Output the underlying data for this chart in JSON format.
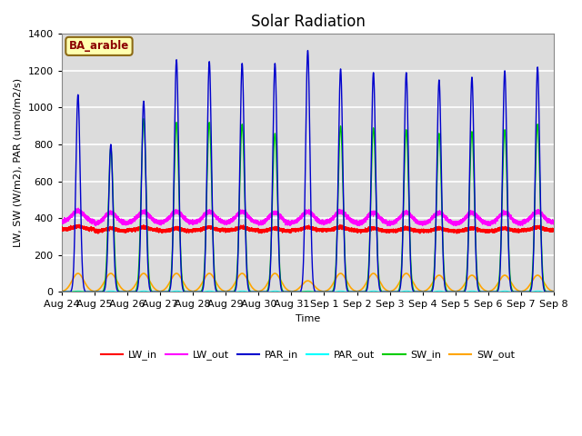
{
  "title": "Solar Radiation",
  "ylabel": "LW, SW (W/m2), PAR (umol/m2/s)",
  "xlabel": "Time",
  "annotation": "BA_arable",
  "ylim": [
    0,
    1400
  ],
  "yticks": [
    0,
    200,
    400,
    600,
    800,
    1000,
    1200,
    1400
  ],
  "xtick_labels": [
    "Aug 24",
    "Aug 25",
    "Aug 26",
    "Aug 27",
    "Aug 28",
    "Aug 29",
    "Aug 30",
    "Aug 31",
    "Sep 1",
    "Sep 2",
    "Sep 3",
    "Sep 4",
    "Sep 5",
    "Sep 6",
    "Sep 7",
    "Sep 8"
  ],
  "colors": {
    "LW_in": "#ff0000",
    "LW_out": "#ff00ff",
    "PAR_in": "#0000cd",
    "PAR_out": "#00ffff",
    "SW_in": "#00cc00",
    "SW_out": "#ffa500"
  },
  "bg_color": "#dcdcdc",
  "grid_color": "#c8c8c8",
  "title_fontsize": 12,
  "label_fontsize": 8,
  "tick_fontsize": 8,
  "num_days": 15,
  "pts_per_day": 1440,
  "PAR_in_peaks": [
    1070,
    800,
    1035,
    1260,
    1250,
    1240,
    1240,
    1310,
    1210,
    1190,
    1190,
    1150,
    1165,
    1200,
    1220
  ],
  "SW_in_peaks": [
    0,
    780,
    940,
    920,
    920,
    910,
    860,
    0,
    900,
    890,
    880,
    860,
    870,
    880,
    910
  ],
  "SW_out_peaks": [
    100,
    100,
    100,
    100,
    100,
    100,
    100,
    60,
    100,
    100,
    100,
    90,
    90,
    90,
    90
  ],
  "LW_in_base": [
    340,
    330,
    335,
    330,
    335,
    335,
    330,
    335,
    335,
    330,
    330,
    330,
    330,
    330,
    335
  ],
  "LW_out_base": [
    380,
    370,
    375,
    375,
    375,
    375,
    370,
    375,
    375,
    370,
    370,
    370,
    370,
    370,
    375
  ]
}
